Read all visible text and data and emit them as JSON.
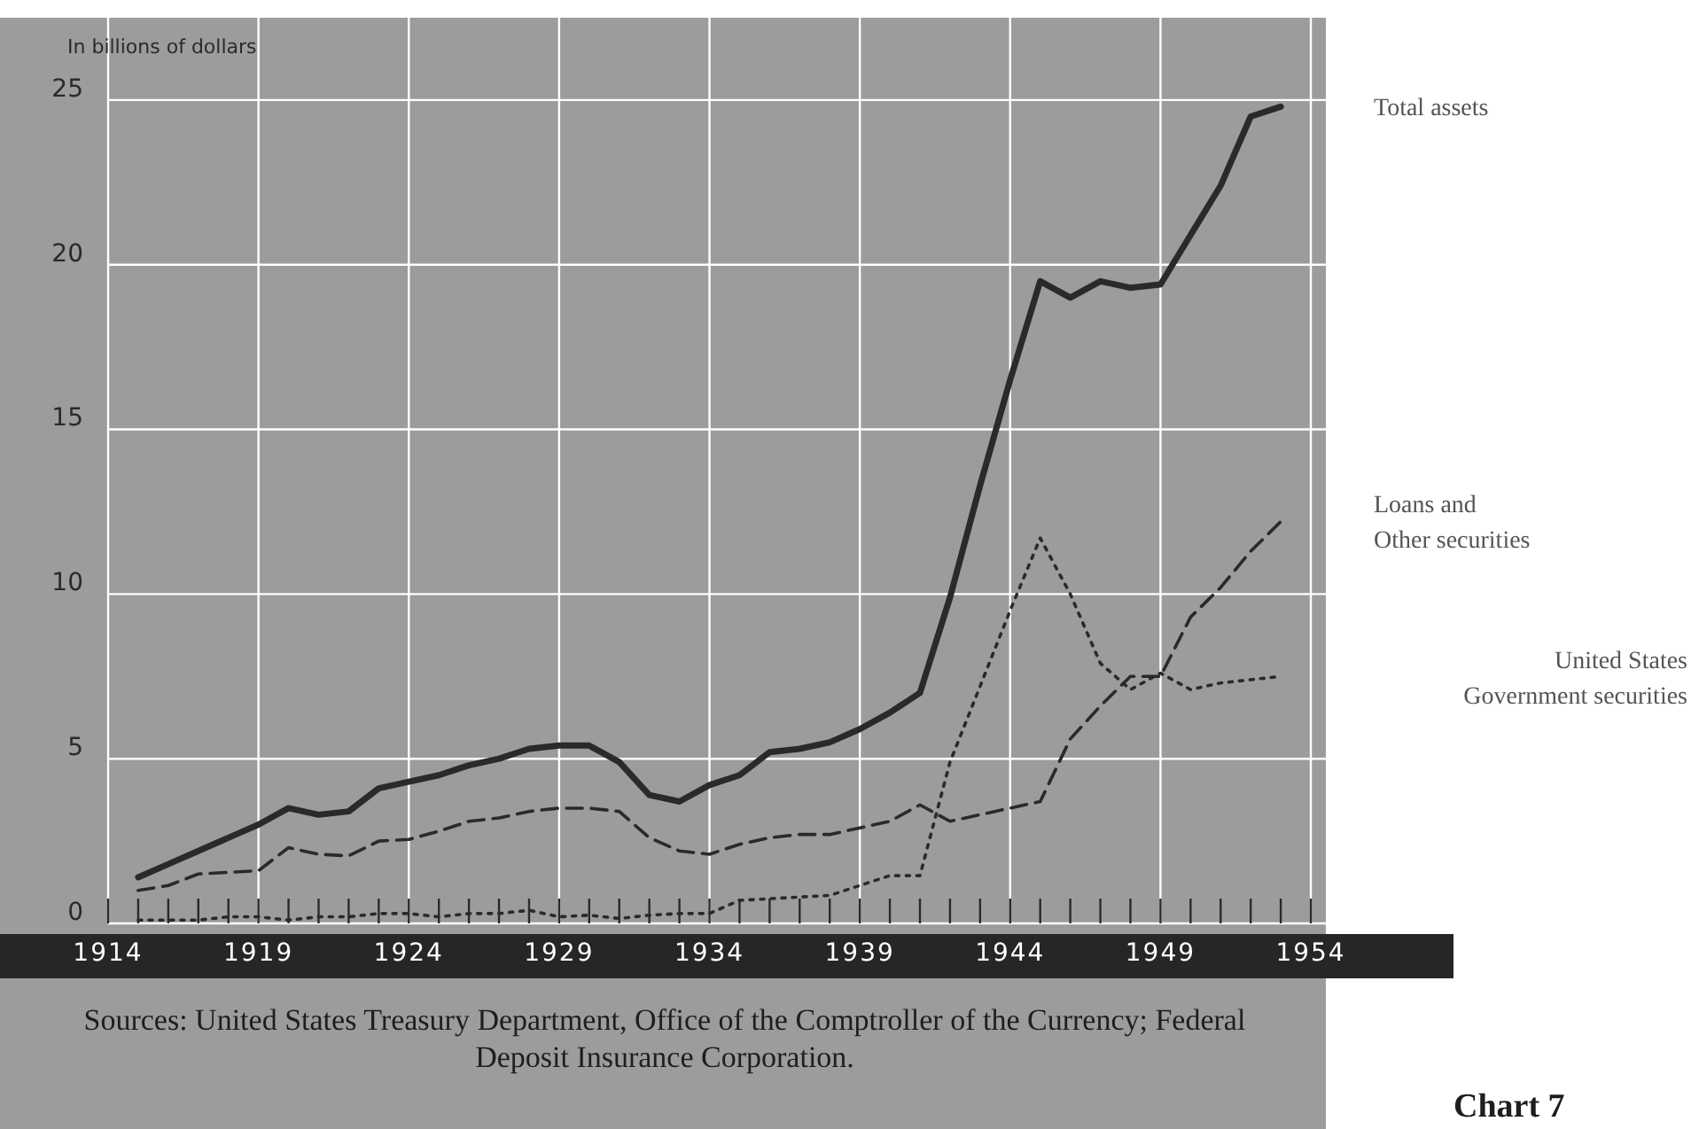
{
  "chart_data": {
    "type": "line",
    "ylabel": "In billions of dollars",
    "annotations": [
      "Sources: United States Treasury Department, Office of the Comptroller of the Currency; Federal Deposit Insurance Corporation.",
      "Chart 7"
    ],
    "x": [
      1915,
      1916,
      1917,
      1918,
      1919,
      1920,
      1921,
      1922,
      1923,
      1924,
      1925,
      1926,
      1927,
      1928,
      1929,
      1930,
      1931,
      1932,
      1933,
      1934,
      1935,
      1936,
      1937,
      1938,
      1939,
      1940,
      1941,
      1942,
      1943,
      1944,
      1945,
      1946,
      1947,
      1948,
      1949,
      1950,
      1951,
      1952,
      1953
    ],
    "series": [
      {
        "name": "Total assets",
        "color": "#2a2a2a",
        "line_style": "solid",
        "values": [
          1.4,
          1.8,
          2.2,
          2.6,
          3.0,
          3.5,
          3.3,
          3.4,
          4.1,
          4.3,
          4.5,
          4.8,
          5.0,
          5.3,
          5.4,
          5.4,
          4.9,
          3.9,
          3.7,
          4.2,
          4.5,
          5.2,
          5.3,
          5.5,
          5.9,
          6.4,
          7.0,
          9.9,
          13.3,
          16.5,
          19.5,
          19.0,
          19.5,
          19.3,
          19.4,
          20.9,
          22.4,
          24.5,
          24.8
        ]
      },
      {
        "name": "Loans and Other securities",
        "color": "#2a2a2a",
        "line_style": "dashed",
        "values": [
          1.0,
          1.15,
          1.5,
          1.55,
          1.6,
          2.3,
          2.1,
          2.05,
          2.5,
          2.55,
          2.8,
          3.1,
          3.2,
          3.4,
          3.5,
          3.5,
          3.4,
          2.6,
          2.2,
          2.1,
          2.4,
          2.6,
          2.7,
          2.7,
          2.9,
          3.1,
          3.6,
          3.1,
          3.3,
          3.5,
          3.7,
          5.6,
          6.6,
          7.5,
          7.5,
          9.3,
          10.2,
          11.3,
          12.2
        ]
      },
      {
        "name": "United States Government securities",
        "color": "#2a2a2a",
        "line_style": "dotted",
        "values": [
          0.1,
          0.1,
          0.1,
          0.2,
          0.2,
          0.1,
          0.2,
          0.2,
          0.3,
          0.3,
          0.2,
          0.3,
          0.3,
          0.4,
          0.2,
          0.25,
          0.15,
          0.25,
          0.3,
          0.3,
          0.7,
          0.75,
          0.8,
          0.85,
          1.15,
          1.45,
          1.45,
          4.9,
          7.2,
          9.5,
          11.7,
          10.0,
          7.9,
          7.1,
          7.6,
          7.1,
          7.3,
          7.4,
          7.5
        ]
      }
    ],
    "xlim": [
      1914,
      1954.5
    ],
    "xticks": [
      1914,
      {
        "value": 1915,
        "label": null
      },
      {
        "value": 1916,
        "label": null
      },
      {
        "value": 1917,
        "label": null
      },
      {
        "value": 1918,
        "label": null
      },
      1919,
      {
        "value": 1920,
        "label": null
      },
      {
        "value": 1921,
        "label": null
      },
      {
        "value": 1922,
        "label": null
      },
      {
        "value": 1923,
        "label": null
      },
      1924,
      {
        "value": 1925,
        "label": null
      },
      {
        "value": 1926,
        "label": null
      },
      {
        "value": 1927,
        "label": null
      },
      {
        "value": 1928,
        "label": null
      },
      1929,
      {
        "value": 1930,
        "label": null
      },
      {
        "value": 1931,
        "label": null
      },
      {
        "value": 1932,
        "label": null
      },
      {
        "value": 1933,
        "label": null
      },
      1934,
      {
        "value": 1935,
        "label": null
      },
      {
        "value": 1936,
        "label": null
      },
      {
        "value": 1937,
        "label": null
      },
      {
        "value": 1938,
        "label": null
      },
      1939,
      {
        "value": 1940,
        "label": null
      },
      {
        "value": 1941,
        "label": null
      },
      {
        "value": 1942,
        "label": null
      },
      {
        "value": 1943,
        "label": null
      },
      1944,
      {
        "value": 1945,
        "label": null
      },
      {
        "value": 1946,
        "label": null
      },
      {
        "value": 1947,
        "label": null
      },
      {
        "value": 1948,
        "label": null
      },
      1949,
      {
        "value": 1950,
        "label": null
      },
      {
        "value": 1951,
        "label": null
      },
      {
        "value": 1952,
        "label": null
      },
      {
        "value": 1953,
        "label": null
      },
      1954
    ],
    "ylim": [
      0,
      27.5
    ],
    "yticks": [
      0,
      5,
      10,
      15,
      20,
      25
    ],
    "grid": true,
    "legend": "right",
    "marker": "none"
  }
}
